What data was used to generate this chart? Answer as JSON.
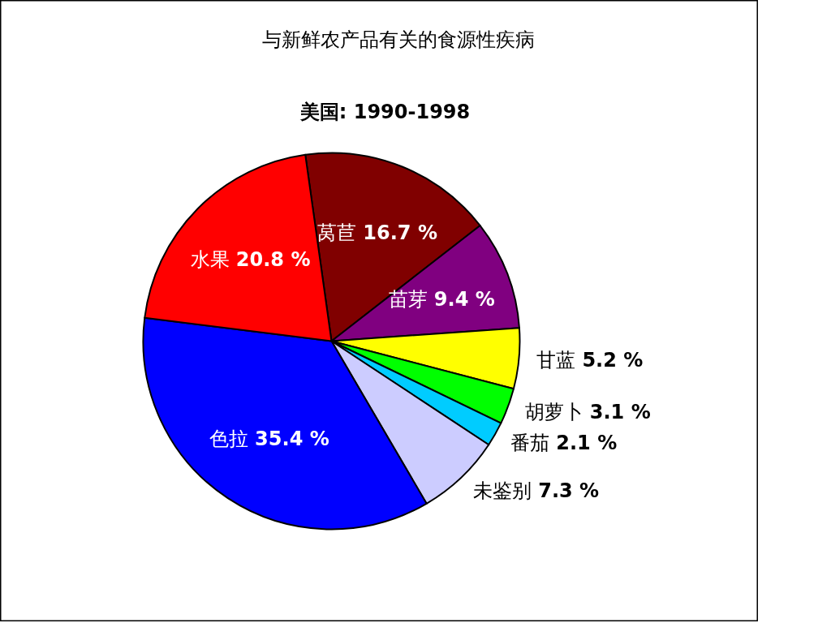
{
  "chart_data": {
    "type": "pie",
    "title": "与新鲜农产品有关的食源性疾病",
    "subtitle": "美国: 1990-1998",
    "categories": [
      "莴苣",
      "苗芽",
      "甘蓝",
      "胡萝卜",
      "番茄",
      "未鉴别",
      "色拉",
      "水果"
    ],
    "values": [
      16.7,
      9.4,
      5.2,
      3.1,
      2.1,
      7.3,
      35.4,
      20.8
    ],
    "colors": [
      "#800000",
      "#800080",
      "#ffff00",
      "#00ff00",
      "#00ccff",
      "#ccccff",
      "#0000ff",
      "#ff0000"
    ],
    "value_labels": [
      "16.7 %",
      "9.4 %",
      "5.2 %",
      "3.1 %",
      "2.1 %",
      "7.3 %",
      "35.4 %",
      "20.8 %"
    ]
  }
}
